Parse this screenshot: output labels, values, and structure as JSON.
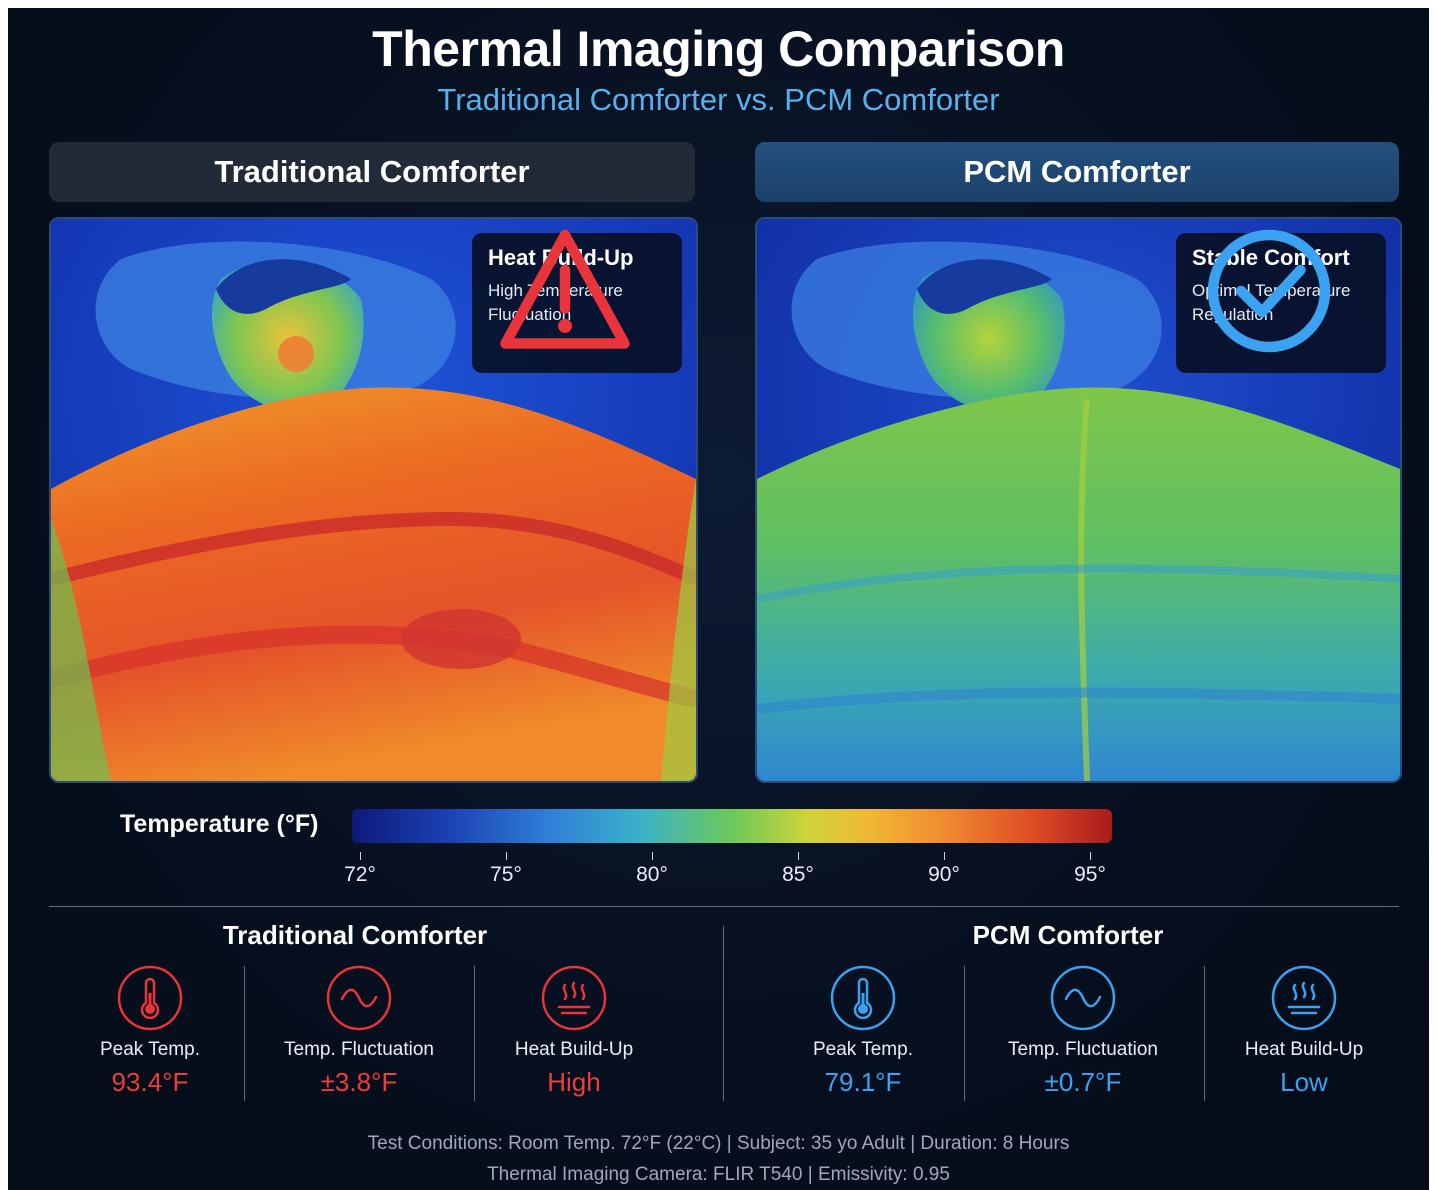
{
  "header": {
    "title": "Thermal Imaging Comparison",
    "subtitle": "Traditional Comforter vs. PCM Comforter"
  },
  "panels": [
    {
      "label": "Traditional Comforter",
      "badge_title": "Heat Build-Up",
      "badge_text": "High Temperature Fluctuation",
      "badge_icon": "warning-triangle-icon",
      "badge_color": "#e8343a"
    },
    {
      "label": "PCM Comforter",
      "badge_title": "Stable Comfort",
      "badge_text": "Optimal Temperature Regulation",
      "badge_icon": "checkmark-circle-icon",
      "badge_color": "#3aa2f0"
    }
  ],
  "legend": {
    "label": "Temperature (°F)",
    "ticks": [
      "72°",
      "75°",
      "80°",
      "85°",
      "90°",
      "95°"
    ]
  },
  "stats": {
    "traditional": {
      "title": "Traditional Comforter",
      "color": "#ee3d3b",
      "metrics": [
        {
          "icon": "thermometer-icon",
          "label": "Peak Temp.",
          "value": "93.4°F"
        },
        {
          "icon": "wave-icon",
          "label": "Temp. Fluctuation",
          "value": "±3.8°F"
        },
        {
          "icon": "heat-icon",
          "label": "Heat Build-Up",
          "value": "High"
        }
      ]
    },
    "pcm": {
      "title": "PCM Comforter",
      "color": "#3aa2f0",
      "metrics": [
        {
          "icon": "thermometer-icon",
          "label": "Peak Temp.",
          "value": "79.1°F"
        },
        {
          "icon": "wave-icon",
          "label": "Temp. Fluctuation",
          "value": "±0.7°F"
        },
        {
          "icon": "heat-icon",
          "label": "Heat Build-Up",
          "value": "Low"
        }
      ]
    }
  },
  "footer": {
    "line1": "Test Conditions: Room Temp. 72°F (22°C)  |  Subject: 35 yo Adult  |  Duration: 8 Hours",
    "line2": "Thermal Imaging Camera:  FLIR T540  |  Emissivity: 0.95"
  }
}
